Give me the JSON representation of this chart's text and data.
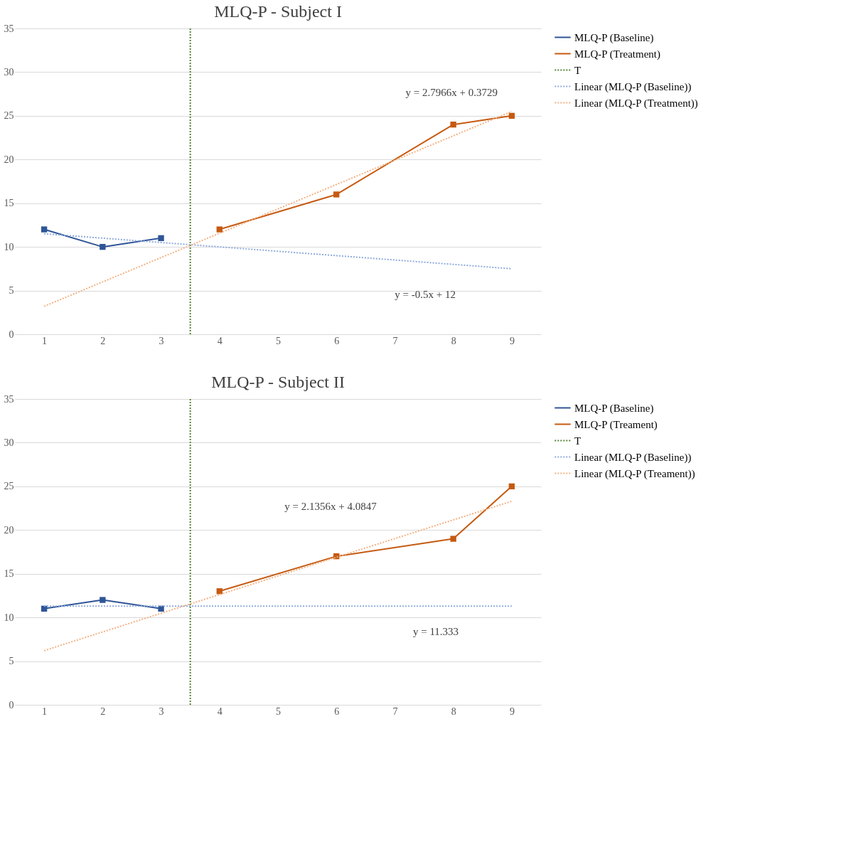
{
  "chart_data": [
    {
      "type": "line",
      "title": "MLQ-P - Subject I",
      "xlim": [
        0.5,
        9.5
      ],
      "xticks": [
        1,
        2,
        3,
        4,
        5,
        6,
        7,
        8,
        9
      ],
      "ylim": [
        0,
        35
      ],
      "yticks": [
        0,
        5,
        10,
        15,
        20,
        25,
        30,
        35
      ],
      "grid": "y",
      "legend": "right",
      "series": [
        {
          "name": "MLQ-P (Baseline)",
          "color": "#2f5597",
          "x": [
            1,
            2,
            3
          ],
          "values": [
            12,
            10,
            11
          ],
          "marker": "square",
          "line_style": "solid"
        },
        {
          "name": "MLQ-P (Treatment)",
          "color": "#c55a11",
          "x": [
            4,
            6,
            8,
            9
          ],
          "values": [
            12,
            16,
            24,
            25
          ],
          "marker": "square",
          "line_style": "solid"
        },
        {
          "name": "T",
          "color": "#548235",
          "x": [
            3.5,
            3.5
          ],
          "values": [
            0,
            35
          ],
          "marker": "none",
          "line_style": "dotted"
        },
        {
          "name": "Linear (MLQ-P (Baseline))",
          "color": "#8faadc",
          "x": [
            1,
            9
          ],
          "values": [
            11.5,
            7.5
          ],
          "marker": "none",
          "line_style": "dotted"
        },
        {
          "name": "Linear (MLQ-P (Treatment))",
          "color": "#f4b183",
          "x": [
            1,
            9
          ],
          "values": [
            3.2,
            25.5
          ],
          "marker": "none",
          "line_style": "dotted"
        }
      ],
      "annotations": [
        "y = 2.7966x + 0.3729",
        "y = -0.5x + 12"
      ]
    },
    {
      "type": "line",
      "title": "MLQ-P - Subject II",
      "xlim": [
        0.5,
        9.5
      ],
      "xticks": [
        1,
        2,
        3,
        4,
        5,
        6,
        7,
        8,
        9
      ],
      "ylim": [
        0,
        35
      ],
      "yticks": [
        0,
        5,
        10,
        15,
        20,
        25,
        30,
        35
      ],
      "grid": "y",
      "legend": "right",
      "series": [
        {
          "name": "MLQ-P (Baseline)",
          "color": "#2f5597",
          "x": [
            1,
            2,
            3
          ],
          "values": [
            11,
            12,
            11
          ],
          "marker": "square",
          "line_style": "solid"
        },
        {
          "name": "MLQ-P (Treament)",
          "color": "#c55a11",
          "x": [
            4,
            6,
            8,
            9
          ],
          "values": [
            13,
            17,
            19,
            25
          ],
          "marker": "square",
          "line_style": "solid"
        },
        {
          "name": "T",
          "color": "#548235",
          "x": [
            3.5,
            3.5
          ],
          "values": [
            0,
            35
          ],
          "marker": "none",
          "line_style": "dotted"
        },
        {
          "name": "Linear (MLQ-P (Baseline))",
          "color": "#8faadc",
          "x": [
            1,
            9
          ],
          "values": [
            11.3,
            11.3
          ],
          "marker": "none",
          "line_style": "dotted"
        },
        {
          "name": "Linear (MLQ-P (Treament))",
          "color": "#f4b183",
          "x": [
            1,
            9
          ],
          "values": [
            6.2,
            23.3
          ],
          "marker": "none",
          "line_style": "dotted"
        }
      ],
      "annotations": [
        "y = 2.1356x + 4.0847",
        "y = 11.333"
      ]
    }
  ]
}
